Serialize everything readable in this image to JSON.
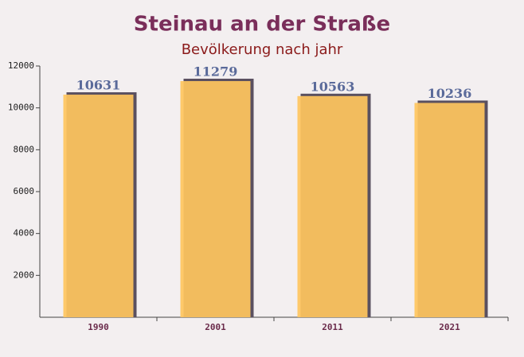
{
  "chart_data": {
    "type": "bar",
    "title": "Steinau an der Straße",
    "subtitle": "Bevölkerung nach jahr",
    "categories": [
      "1990",
      "2001",
      "2011",
      "2021"
    ],
    "values": [
      10631,
      11279,
      10563,
      10236
    ],
    "color": "#ffc55e",
    "ylim": [
      0,
      12000
    ],
    "yticks": [
      2000,
      4000,
      6000,
      8000,
      10000,
      12000
    ]
  }
}
